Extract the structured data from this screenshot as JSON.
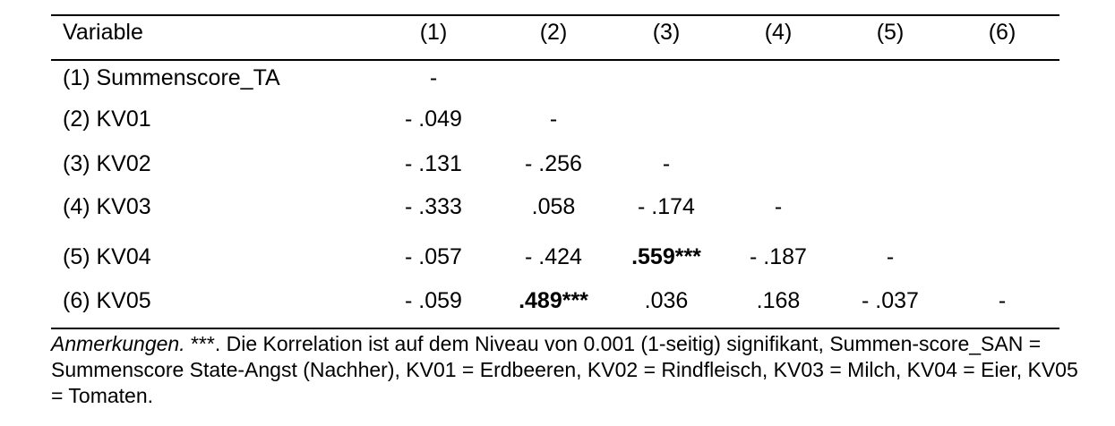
{
  "table": {
    "header": {
      "variable_label": "Variable",
      "columns": [
        "(1)",
        "(2)",
        "(3)",
        "(4)",
        "(5)",
        "(6)"
      ]
    },
    "rows": [
      {
        "label": "(1) Summenscore_TA",
        "cells": [
          "-",
          "",
          "",
          "",
          "",
          ""
        ]
      },
      {
        "label": "(2) KV01",
        "cells": [
          "- .049",
          "-",
          "",
          "",
          "",
          ""
        ]
      },
      {
        "label": "(3) KV02",
        "cells": [
          "- .131",
          "- .256",
          "-",
          "",
          "",
          ""
        ]
      },
      {
        "label": "(4) KV03",
        "cells": [
          "- .333",
          ".058",
          "- .174",
          "-",
          "",
          ""
        ]
      },
      {
        "label": "(5) KV04",
        "cells": [
          "- .057",
          "- .424",
          ".559***",
          "- .187",
          "-",
          ""
        ]
      },
      {
        "label": "(6) KV05",
        "cells": [
          "- .059",
          ".489***",
          ".036",
          ".168",
          "- .037",
          "-"
        ]
      }
    ],
    "bold_cells": [
      ".559***",
      ".489***"
    ]
  },
  "note": {
    "label": "Anmerkungen.",
    "text": " ***. Die Korrelation ist auf dem Niveau von 0.001 (1-seitig) signifikant, Summen-score_SAN = Summenscore State-Angst (Nachher), KV01 = Erdbeeren, KV02 = Rindfleisch, KV03 = Milch, KV04 = Eier, KV05 = Tomaten."
  }
}
